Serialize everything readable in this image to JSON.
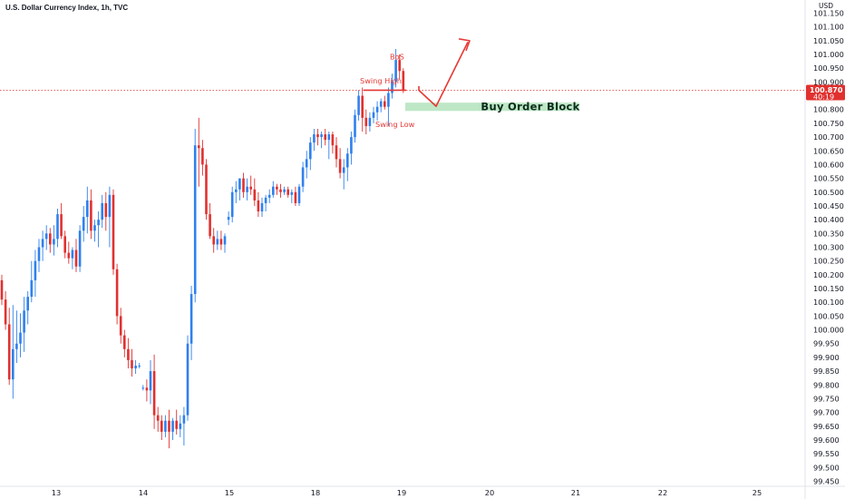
{
  "header": {
    "title": "U.S. Dollar Currency Index, 1h, TVC",
    "currency": "USD"
  },
  "price_tag": {
    "price": "100.870",
    "countdown": "40:19"
  },
  "colors": {
    "up": "#2f80ed",
    "down": "#e0312f",
    "annotation": "#e53935",
    "zone": "#b7e4c0"
  },
  "chart_data": {
    "type": "candlestick",
    "title": "U.S. Dollar Currency Index, 1h, TVC",
    "ylim": [
      99.42,
      101.2
    ],
    "y_ticks": [
      "101.150",
      "101.100",
      "101.050",
      "101.000",
      "100.950",
      "100.900",
      "100.850",
      "100.800",
      "100.750",
      "100.700",
      "100.650",
      "100.600",
      "100.550",
      "100.500",
      "100.450",
      "100.400",
      "100.350",
      "100.300",
      "100.250",
      "100.200",
      "100.150",
      "100.100",
      "100.050",
      "100.000",
      "99.950",
      "99.900",
      "99.850",
      "99.800",
      "99.750",
      "99.700",
      "99.650",
      "99.600",
      "99.550",
      "99.500",
      "99.450"
    ],
    "x_ticks": [
      "13",
      "14",
      "15",
      "18",
      "19",
      "20",
      "21",
      "22",
      "25"
    ],
    "candles": [
      {
        "o": 100.18,
        "h": 100.2,
        "l": 100.09,
        "c": 100.11
      },
      {
        "o": 100.11,
        "h": 100.14,
        "l": 100.0,
        "c": 100.02
      },
      {
        "o": 100.02,
        "h": 100.08,
        "l": 99.8,
        "c": 99.82
      },
      {
        "o": 99.82,
        "h": 100.09,
        "l": 99.75,
        "c": 99.93
      },
      {
        "o": 99.93,
        "h": 100.07,
        "l": 99.88,
        "c": 99.95
      },
      {
        "o": 99.95,
        "h": 100.06,
        "l": 99.9,
        "c": 99.99
      },
      {
        "o": 99.99,
        "h": 100.12,
        "l": 99.92,
        "c": 100.07
      },
      {
        "o": 100.07,
        "h": 100.14,
        "l": 100.02,
        "c": 100.12
      },
      {
        "o": 100.12,
        "h": 100.25,
        "l": 100.1,
        "c": 100.18
      },
      {
        "o": 100.18,
        "h": 100.29,
        "l": 100.12,
        "c": 100.25
      },
      {
        "o": 100.25,
        "h": 100.33,
        "l": 100.21,
        "c": 100.3
      },
      {
        "o": 100.3,
        "h": 100.36,
        "l": 100.25,
        "c": 100.33
      },
      {
        "o": 100.33,
        "h": 100.38,
        "l": 100.29,
        "c": 100.35
      },
      {
        "o": 100.35,
        "h": 100.37,
        "l": 100.28,
        "c": 100.31
      },
      {
        "o": 100.31,
        "h": 100.38,
        "l": 100.27,
        "c": 100.33
      },
      {
        "o": 100.33,
        "h": 100.44,
        "l": 100.3,
        "c": 100.42
      },
      {
        "o": 100.42,
        "h": 100.46,
        "l": 100.33,
        "c": 100.34
      },
      {
        "o": 100.34,
        "h": 100.36,
        "l": 100.26,
        "c": 100.28
      },
      {
        "o": 100.28,
        "h": 100.32,
        "l": 100.24,
        "c": 100.26
      },
      {
        "o": 100.26,
        "h": 100.3,
        "l": 100.22,
        "c": 100.29
      },
      {
        "o": 100.29,
        "h": 100.33,
        "l": 100.21,
        "c": 100.23
      },
      {
        "o": 100.23,
        "h": 100.38,
        "l": 100.21,
        "c": 100.36
      },
      {
        "o": 100.36,
        "h": 100.45,
        "l": 100.32,
        "c": 100.41
      },
      {
        "o": 100.41,
        "h": 100.52,
        "l": 100.35,
        "c": 100.47
      },
      {
        "o": 100.47,
        "h": 100.51,
        "l": 100.33,
        "c": 100.36
      },
      {
        "o": 100.36,
        "h": 100.4,
        "l": 100.32,
        "c": 100.38
      },
      {
        "o": 100.38,
        "h": 100.43,
        "l": 100.3,
        "c": 100.4
      },
      {
        "o": 100.4,
        "h": 100.49,
        "l": 100.37,
        "c": 100.46
      },
      {
        "o": 100.46,
        "h": 100.5,
        "l": 100.36,
        "c": 100.41
      },
      {
        "o": 100.41,
        "h": 100.52,
        "l": 100.3,
        "c": 100.49
      },
      {
        "o": 100.49,
        "h": 100.51,
        "l": 100.2,
        "c": 100.22
      },
      {
        "o": 100.22,
        "h": 100.24,
        "l": 100.02,
        "c": 100.05
      },
      {
        "o": 100.05,
        "h": 100.08,
        "l": 99.95,
        "c": 99.98
      },
      {
        "o": 99.98,
        "h": 100.0,
        "l": 99.9,
        "c": 99.93
      },
      {
        "o": 99.93,
        "h": 99.97,
        "l": 99.86,
        "c": 99.89
      },
      {
        "o": 99.89,
        "h": 99.93,
        "l": 99.83,
        "c": 99.86
      },
      {
        "o": 99.86,
        "h": 99.89,
        "l": 99.84,
        "c": 99.87
      },
      {
        "o": 99.87,
        "h": 99.88,
        "l": 99.86,
        "c": 99.87
      },
      {
        "o": 99.79,
        "h": 99.8,
        "l": 99.78,
        "c": 99.79
      },
      {
        "o": 99.79,
        "h": 99.82,
        "l": 99.74,
        "c": 99.78
      },
      {
        "o": 99.78,
        "h": 99.89,
        "l": 99.73,
        "c": 99.85
      },
      {
        "o": 99.85,
        "h": 99.91,
        "l": 99.64,
        "c": 99.69
      },
      {
        "o": 99.69,
        "h": 99.72,
        "l": 99.63,
        "c": 99.67
      },
      {
        "o": 99.67,
        "h": 99.69,
        "l": 99.6,
        "c": 99.63
      },
      {
        "o": 99.63,
        "h": 99.69,
        "l": 99.61,
        "c": 99.67
      },
      {
        "o": 99.67,
        "h": 99.71,
        "l": 99.57,
        "c": 99.63
      },
      {
        "o": 99.63,
        "h": 99.68,
        "l": 99.6,
        "c": 99.67
      },
      {
        "o": 99.67,
        "h": 99.71,
        "l": 99.62,
        "c": 99.64
      },
      {
        "o": 99.64,
        "h": 99.69,
        "l": 99.61,
        "c": 99.66
      },
      {
        "o": 99.66,
        "h": 99.72,
        "l": 99.58,
        "c": 99.69
      },
      {
        "o": 99.69,
        "h": 99.98,
        "l": 99.67,
        "c": 99.95
      },
      {
        "o": 99.95,
        "h": 100.16,
        "l": 99.89,
        "c": 100.13
      },
      {
        "o": 100.13,
        "h": 100.73,
        "l": 100.1,
        "c": 100.67
      },
      {
        "o": 100.67,
        "h": 100.77,
        "l": 100.52,
        "c": 100.66
      },
      {
        "o": 100.66,
        "h": 100.69,
        "l": 100.56,
        "c": 100.6
      },
      {
        "o": 100.6,
        "h": 100.62,
        "l": 100.4,
        "c": 100.42
      },
      {
        "o": 100.42,
        "h": 100.46,
        "l": 100.33,
        "c": 100.34
      },
      {
        "o": 100.34,
        "h": 100.37,
        "l": 100.28,
        "c": 100.31
      },
      {
        "o": 100.31,
        "h": 100.36,
        "l": 100.29,
        "c": 100.33
      },
      {
        "o": 100.33,
        "h": 100.36,
        "l": 100.29,
        "c": 100.31
      },
      {
        "o": 100.31,
        "h": 100.35,
        "l": 100.28,
        "c": 100.34
      },
      {
        "o": 100.4,
        "h": 100.43,
        "l": 100.38,
        "c": 100.41
      },
      {
        "o": 100.41,
        "h": 100.52,
        "l": 100.39,
        "c": 100.5
      },
      {
        "o": 100.5,
        "h": 100.54,
        "l": 100.46,
        "c": 100.51
      },
      {
        "o": 100.51,
        "h": 100.55,
        "l": 100.47,
        "c": 100.55
      },
      {
        "o": 100.55,
        "h": 100.57,
        "l": 100.48,
        "c": 100.5
      },
      {
        "o": 100.5,
        "h": 100.55,
        "l": 100.47,
        "c": 100.52
      },
      {
        "o": 100.52,
        "h": 100.56,
        "l": 100.49,
        "c": 100.51
      },
      {
        "o": 100.51,
        "h": 100.55,
        "l": 100.45,
        "c": 100.47
      },
      {
        "o": 100.47,
        "h": 100.5,
        "l": 100.41,
        "c": 100.43
      },
      {
        "o": 100.43,
        "h": 100.48,
        "l": 100.41,
        "c": 100.46
      },
      {
        "o": 100.46,
        "h": 100.49,
        "l": 100.43,
        "c": 100.48
      },
      {
        "o": 100.48,
        "h": 100.51,
        "l": 100.46,
        "c": 100.49
      },
      {
        "o": 100.49,
        "h": 100.54,
        "l": 100.48,
        "c": 100.52
      },
      {
        "o": 100.52,
        "h": 100.53,
        "l": 100.49,
        "c": 100.51
      },
      {
        "o": 100.51,
        "h": 100.53,
        "l": 100.48,
        "c": 100.5
      },
      {
        "o": 100.5,
        "h": 100.52,
        "l": 100.49,
        "c": 100.51
      },
      {
        "o": 100.51,
        "h": 100.52,
        "l": 100.48,
        "c": 100.49
      },
      {
        "o": 100.49,
        "h": 100.51,
        "l": 100.46,
        "c": 100.5
      },
      {
        "o": 100.5,
        "h": 100.52,
        "l": 100.45,
        "c": 100.46
      },
      {
        "o": 100.46,
        "h": 100.53,
        "l": 100.45,
        "c": 100.52
      },
      {
        "o": 100.52,
        "h": 100.61,
        "l": 100.5,
        "c": 100.59
      },
      {
        "o": 100.59,
        "h": 100.65,
        "l": 100.55,
        "c": 100.62
      },
      {
        "o": 100.62,
        "h": 100.7,
        "l": 100.58,
        "c": 100.68
      },
      {
        "o": 100.68,
        "h": 100.73,
        "l": 100.65,
        "c": 100.71
      },
      {
        "o": 100.71,
        "h": 100.73,
        "l": 100.67,
        "c": 100.7
      },
      {
        "o": 100.7,
        "h": 100.72,
        "l": 100.66,
        "c": 100.71
      },
      {
        "o": 100.71,
        "h": 100.73,
        "l": 100.67,
        "c": 100.69
      },
      {
        "o": 100.69,
        "h": 100.72,
        "l": 100.62,
        "c": 100.71
      },
      {
        "o": 100.71,
        "h": 100.72,
        "l": 100.64,
        "c": 100.67
      },
      {
        "o": 100.67,
        "h": 100.7,
        "l": 100.59,
        "c": 100.62
      },
      {
        "o": 100.62,
        "h": 100.66,
        "l": 100.55,
        "c": 100.57
      },
      {
        "o": 100.57,
        "h": 100.62,
        "l": 100.51,
        "c": 100.59
      },
      {
        "o": 100.59,
        "h": 100.66,
        "l": 100.54,
        "c": 100.64
      },
      {
        "o": 100.64,
        "h": 100.72,
        "l": 100.6,
        "c": 100.7
      },
      {
        "o": 100.7,
        "h": 100.8,
        "l": 100.68,
        "c": 100.78
      },
      {
        "o": 100.78,
        "h": 100.87,
        "l": 100.76,
        "c": 100.85
      },
      {
        "o": 100.85,
        "h": 100.88,
        "l": 100.72,
        "c": 100.77
      },
      {
        "o": 100.77,
        "h": 100.8,
        "l": 100.71,
        "c": 100.74
      },
      {
        "o": 100.74,
        "h": 100.79,
        "l": 100.72,
        "c": 100.77
      },
      {
        "o": 100.77,
        "h": 100.81,
        "l": 100.75,
        "c": 100.79
      },
      {
        "o": 100.79,
        "h": 100.83,
        "l": 100.76,
        "c": 100.81
      },
      {
        "o": 100.81,
        "h": 100.84,
        "l": 100.79,
        "c": 100.83
      },
      {
        "o": 100.83,
        "h": 100.85,
        "l": 100.8,
        "c": 100.81
      },
      {
        "o": 100.81,
        "h": 100.88,
        "l": 100.74,
        "c": 100.86
      },
      {
        "o": 100.86,
        "h": 100.93,
        "l": 100.84,
        "c": 100.9
      },
      {
        "o": 100.9,
        "h": 101.02,
        "l": 100.88,
        "c": 100.98
      },
      {
        "o": 100.98,
        "h": 101.0,
        "l": 100.91,
        "c": 100.94
      },
      {
        "o": 100.94,
        "h": 100.95,
        "l": 100.86,
        "c": 100.87
      }
    ],
    "annotations": {
      "bos": {
        "label": "BoS",
        "price": 100.975
      },
      "swing_high": {
        "label": "Swing High",
        "price": 100.875
      },
      "swing_low": {
        "label": "Swing Low",
        "price": 100.73
      },
      "order_block": {
        "label": "Buy Order Block",
        "top": 100.825,
        "bottom": 100.795
      }
    },
    "current_price": 100.87
  }
}
